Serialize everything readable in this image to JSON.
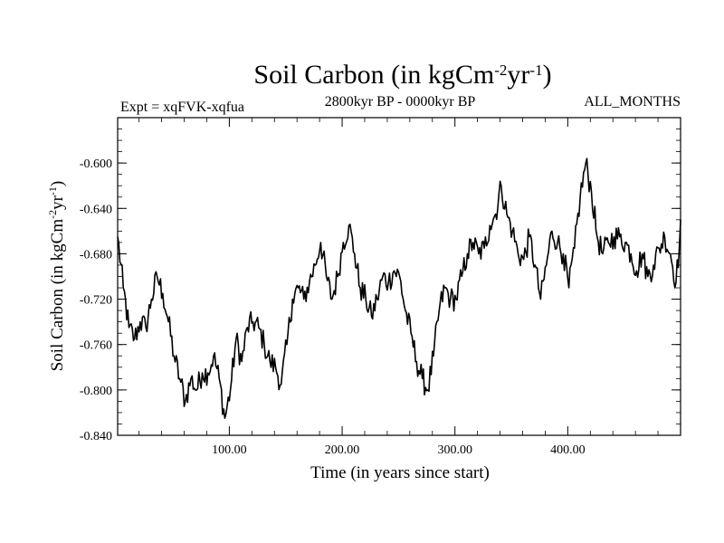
{
  "chart_data": {
    "type": "line",
    "title": "Soil Carbon (in kgCm",
    "title_exp1": "-2",
    "title_mid": "yr",
    "title_exp2": "-1",
    "title_end": ")",
    "expt_label": "Expt = xqFVK-xqfua",
    "period_label": "2800kyr BP - 0000kyr BP",
    "months_label": "ALL_MONTHS",
    "xlabel": "Time (in years since start)",
    "ylabel": "Soil Carbon (in kgCm",
    "ylabel_exp1": "-2",
    "ylabel_mid": "yr",
    "ylabel_exp2": "-1",
    "ylabel_end": ")",
    "xlim": [
      1,
      500
    ],
    "ylim": [
      -0.84,
      -0.56
    ],
    "xticks": [
      100,
      200,
      300,
      400
    ],
    "xtick_labels": [
      "100.00",
      "200.00",
      "300.00",
      "400.00"
    ],
    "yticks": [
      -0.84,
      -0.8,
      -0.76,
      -0.72,
      -0.68,
      -0.64,
      -0.6
    ],
    "ytick_labels": [
      "-0.840",
      "-0.800",
      "-0.760",
      "-0.720",
      "-0.680",
      "-0.640",
      "-0.600"
    ],
    "series": [
      {
        "name": "soil_carbon",
        "x_start": 1,
        "x_step": 5,
        "values": [
          -0.665,
          -0.71,
          -0.745,
          -0.755,
          -0.74,
          -0.745,
          -0.72,
          -0.7,
          -0.715,
          -0.74,
          -0.77,
          -0.79,
          -0.81,
          -0.79,
          -0.8,
          -0.785,
          -0.785,
          -0.77,
          -0.79,
          -0.825,
          -0.8,
          -0.755,
          -0.775,
          -0.745,
          -0.74,
          -0.745,
          -0.76,
          -0.775,
          -0.78,
          -0.795,
          -0.76,
          -0.72,
          -0.71,
          -0.72,
          -0.705,
          -0.69,
          -0.67,
          -0.7,
          -0.72,
          -0.7,
          -0.67,
          -0.655,
          -0.68,
          -0.71,
          -0.72,
          -0.735,
          -0.72,
          -0.7,
          -0.705,
          -0.695,
          -0.7,
          -0.73,
          -0.75,
          -0.775,
          -0.79,
          -0.8,
          -0.77,
          -0.73,
          -0.71,
          -0.72,
          -0.72,
          -0.7,
          -0.68,
          -0.67,
          -0.68,
          -0.675,
          -0.655,
          -0.645,
          -0.62,
          -0.645,
          -0.66,
          -0.68,
          -0.685,
          -0.665,
          -0.69,
          -0.72,
          -0.69,
          -0.66,
          -0.67,
          -0.68,
          -0.71,
          -0.675,
          -0.63,
          -0.6,
          -0.625,
          -0.665,
          -0.68,
          -0.67,
          -0.665,
          -0.665,
          -0.67,
          -0.68,
          -0.695,
          -0.68,
          -0.7,
          -0.69,
          -0.675,
          -0.665,
          -0.68,
          -0.705,
          -0.65
        ]
      }
    ]
  }
}
